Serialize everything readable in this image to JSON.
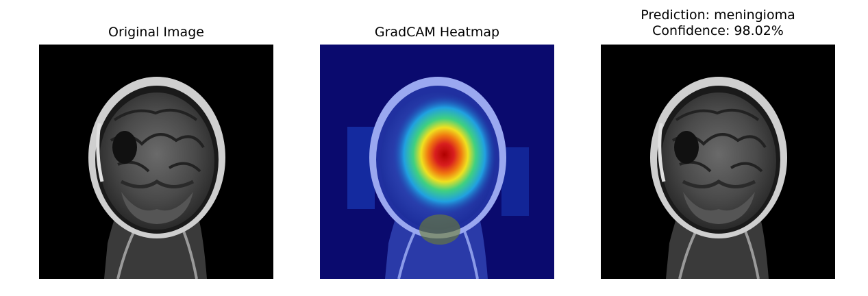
{
  "panels": [
    {
      "title": "Original Image",
      "icon": "mri-scan-icon"
    },
    {
      "title": "GradCAM Heatmap",
      "icon": "heatmap-overlay-icon"
    },
    {
      "title_line1": "Prediction: meningioma",
      "title_line2": "Confidence: 98.02%",
      "icon": "mri-scan-icon"
    }
  ],
  "prediction": {
    "label": "meningioma",
    "confidence_percent": 98.02
  },
  "colors": {
    "background": "#ffffff",
    "panel_background": "#000000",
    "heatmap_low": "#0a0a6e",
    "heatmap_high": "#c01010"
  }
}
